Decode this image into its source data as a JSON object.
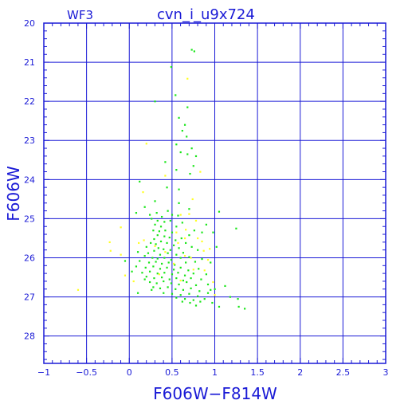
{
  "chart_data": {
    "type": "scatter",
    "title_left": "WF3",
    "title": "cvn_i_u9x724",
    "xlabel": "F606W−F814W",
    "ylabel": "F606W",
    "xlim": [
      -1,
      3
    ],
    "ylim": [
      28.7,
      20
    ],
    "y_inverted": true,
    "grid": true,
    "x_ticks": [
      -1,
      -0.5,
      0,
      0.5,
      1,
      1.5,
      2,
      2.5,
      3
    ],
    "x_tick_labels": [
      "−1",
      "−0.5",
      "0",
      "0.5",
      "1",
      "1.5",
      "2",
      "2.5",
      "3"
    ],
    "y_ticks": [
      20,
      21,
      22,
      23,
      24,
      25,
      26,
      27,
      28
    ],
    "y_tick_labels": [
      "20",
      "21",
      "22",
      "23",
      "24",
      "25",
      "26",
      "27",
      "28"
    ],
    "colors": {
      "axes": "#1a1ad6",
      "grid": "#1a1ad6"
    },
    "series": [
      {
        "color": "#19e619",
        "points": [
          [
            0.73,
            20.68
          ],
          [
            0.76,
            20.72
          ],
          [
            0.49,
            21.12
          ],
          [
            0.54,
            21.84
          ],
          [
            0.3,
            22.0
          ],
          [
            0.68,
            22.15
          ],
          [
            0.58,
            22.42
          ],
          [
            0.65,
            22.6
          ],
          [
            0.62,
            22.75
          ],
          [
            0.67,
            22.9
          ],
          [
            0.55,
            23.1
          ],
          [
            0.73,
            23.2
          ],
          [
            0.6,
            23.3
          ],
          [
            0.68,
            23.35
          ],
          [
            0.78,
            23.4
          ],
          [
            0.42,
            23.55
          ],
          [
            0.75,
            23.65
          ],
          [
            0.55,
            23.75
          ],
          [
            0.71,
            23.85
          ],
          [
            0.12,
            24.05
          ],
          [
            0.44,
            24.2
          ],
          [
            0.58,
            24.25
          ],
          [
            0.3,
            24.55
          ],
          [
            0.58,
            24.6
          ],
          [
            0.18,
            24.7
          ],
          [
            0.7,
            24.75
          ],
          [
            0.08,
            24.85
          ],
          [
            0.24,
            24.9
          ],
          [
            0.32,
            24.85
          ],
          [
            0.38,
            24.95
          ],
          [
            0.45,
            24.8
          ],
          [
            0.5,
            24.9
          ],
          [
            0.57,
            24.92
          ],
          [
            1.05,
            24.82
          ],
          [
            0.26,
            25.0
          ],
          [
            0.33,
            25.05
          ],
          [
            0.41,
            25.08
          ],
          [
            0.48,
            25.05
          ],
          [
            0.3,
            25.15
          ],
          [
            0.37,
            25.2
          ],
          [
            0.55,
            25.2
          ],
          [
            0.62,
            25.1
          ],
          [
            0.9,
            25.15
          ],
          [
            1.25,
            25.25
          ],
          [
            0.28,
            25.3
          ],
          [
            0.35,
            25.32
          ],
          [
            0.42,
            25.3
          ],
          [
            0.5,
            25.35
          ],
          [
            0.76,
            25.3
          ],
          [
            0.85,
            25.35
          ],
          [
            0.98,
            25.35
          ],
          [
            0.33,
            25.42
          ],
          [
            0.41,
            25.45
          ],
          [
            0.47,
            25.48
          ],
          [
            0.29,
            25.52
          ],
          [
            0.37,
            25.58
          ],
          [
            0.54,
            25.55
          ],
          [
            0.61,
            25.5
          ],
          [
            0.7,
            25.42
          ],
          [
            0.25,
            25.62
          ],
          [
            0.31,
            25.65
          ],
          [
            0.44,
            25.62
          ],
          [
            0.52,
            25.68
          ],
          [
            0.66,
            25.62
          ],
          [
            0.2,
            25.72
          ],
          [
            0.34,
            25.75
          ],
          [
            0.4,
            25.78
          ],
          [
            0.48,
            25.8
          ],
          [
            0.58,
            25.75
          ],
          [
            0.73,
            25.72
          ],
          [
            1.02,
            25.72
          ],
          [
            0.1,
            25.85
          ],
          [
            0.22,
            25.88
          ],
          [
            0.29,
            25.82
          ],
          [
            0.36,
            25.92
          ],
          [
            0.45,
            25.88
          ],
          [
            0.55,
            25.92
          ],
          [
            0.63,
            25.87
          ],
          [
            0.8,
            25.8
          ],
          [
            0.18,
            25.95
          ],
          [
            0.27,
            26.0
          ],
          [
            0.33,
            26.02
          ],
          [
            0.41,
            26.0
          ],
          [
            0.49,
            26.05
          ],
          [
            0.6,
            26.0
          ],
          [
            0.7,
            25.98
          ],
          [
            0.85,
            26.03
          ],
          [
            -0.05,
            26.08
          ],
          [
            0.12,
            26.08
          ],
          [
            0.23,
            26.12
          ],
          [
            0.31,
            26.1
          ],
          [
            0.38,
            26.15
          ],
          [
            0.46,
            26.12
          ],
          [
            0.53,
            26.18
          ],
          [
            0.66,
            26.12
          ],
          [
            0.77,
            26.1
          ],
          [
            0.95,
            26.12
          ],
          [
            0.08,
            26.22
          ],
          [
            0.19,
            26.25
          ],
          [
            0.28,
            26.22
          ],
          [
            0.36,
            26.28
          ],
          [
            0.44,
            26.25
          ],
          [
            0.52,
            26.3
          ],
          [
            0.6,
            26.25
          ],
          [
            0.69,
            26.32
          ],
          [
            0.81,
            26.28
          ],
          [
            0.03,
            26.35
          ],
          [
            0.15,
            26.38
          ],
          [
            0.24,
            26.35
          ],
          [
            0.33,
            26.4
          ],
          [
            0.41,
            26.38
          ],
          [
            0.5,
            26.42
          ],
          [
            0.57,
            26.38
          ],
          [
            0.65,
            26.45
          ],
          [
            0.75,
            26.4
          ],
          [
            0.9,
            26.42
          ],
          [
            0.2,
            26.48
          ],
          [
            0.29,
            26.52
          ],
          [
            0.38,
            26.5
          ],
          [
            0.47,
            26.55
          ],
          [
            0.55,
            26.52
          ],
          [
            0.63,
            26.58
          ],
          [
            0.72,
            26.52
          ],
          [
            0.84,
            26.55
          ],
          [
            0.24,
            26.62
          ],
          [
            0.32,
            26.65
          ],
          [
            0.4,
            26.6
          ],
          [
            0.49,
            26.65
          ],
          [
            0.58,
            26.68
          ],
          [
            0.67,
            26.62
          ],
          [
            0.78,
            26.7
          ],
          [
            0.92,
            26.68
          ],
          [
            1.12,
            26.72
          ],
          [
            0.28,
            26.75
          ],
          [
            0.36,
            26.78
          ],
          [
            0.45,
            26.75
          ],
          [
            0.54,
            26.8
          ],
          [
            0.63,
            26.82
          ],
          [
            0.72,
            26.78
          ],
          [
            0.82,
            26.85
          ],
          [
            0.95,
            26.82
          ],
          [
            1.0,
            26.8
          ],
          [
            0.4,
            26.9
          ],
          [
            0.5,
            26.92
          ],
          [
            0.6,
            26.95
          ],
          [
            0.7,
            26.92
          ],
          [
            0.8,
            26.98
          ],
          [
            0.92,
            26.9
          ],
          [
            1.18,
            27.0
          ],
          [
            0.55,
            27.02
          ],
          [
            0.65,
            27.05
          ],
          [
            0.75,
            27.08
          ],
          [
            0.88,
            27.05
          ],
          [
            1.27,
            27.05
          ],
          [
            0.62,
            27.12
          ],
          [
            0.71,
            27.15
          ],
          [
            0.83,
            27.12
          ],
          [
            0.97,
            27.15
          ],
          [
            0.78,
            27.22
          ],
          [
            1.05,
            27.25
          ],
          [
            1.28,
            27.25
          ],
          [
            0.1,
            26.9
          ],
          [
            0.18,
            26.55
          ],
          [
            0.26,
            26.82
          ],
          [
            1.35,
            27.3
          ]
        ]
      },
      {
        "color": "#ffff22",
        "points": [
          [
            0.68,
            21.42
          ],
          [
            0.2,
            23.08
          ],
          [
            0.83,
            23.8
          ],
          [
            0.42,
            23.9
          ],
          [
            0.16,
            24.32
          ],
          [
            0.74,
            24.5
          ],
          [
            0.6,
            24.9
          ],
          [
            0.7,
            24.88
          ],
          [
            0.78,
            25.05
          ],
          [
            0.55,
            25.35
          ],
          [
            0.66,
            25.28
          ],
          [
            -0.1,
            25.22
          ],
          [
            0.8,
            25.5
          ],
          [
            0.85,
            25.58
          ],
          [
            0.65,
            25.5
          ],
          [
            0.17,
            25.55
          ],
          [
            -0.23,
            25.6
          ],
          [
            0.11,
            25.62
          ],
          [
            0.57,
            25.62
          ],
          [
            0.3,
            25.7
          ],
          [
            0.87,
            25.82
          ],
          [
            0.94,
            25.77
          ],
          [
            -0.22,
            25.82
          ],
          [
            0.42,
            25.85
          ],
          [
            0.65,
            25.95
          ],
          [
            -0.1,
            25.92
          ],
          [
            0.72,
            26.0
          ],
          [
            0.92,
            26.05
          ],
          [
            0.52,
            26.15
          ],
          [
            0.88,
            26.32
          ],
          [
            0.75,
            26.3
          ],
          [
            -0.05,
            26.45
          ],
          [
            0.98,
            26.62
          ],
          [
            -0.6,
            26.82
          ],
          [
            1.0,
            26.95
          ],
          [
            0.6,
            26.58
          ],
          [
            0.35,
            26.42
          ],
          [
            0.05,
            26.6
          ]
        ]
      }
    ]
  }
}
